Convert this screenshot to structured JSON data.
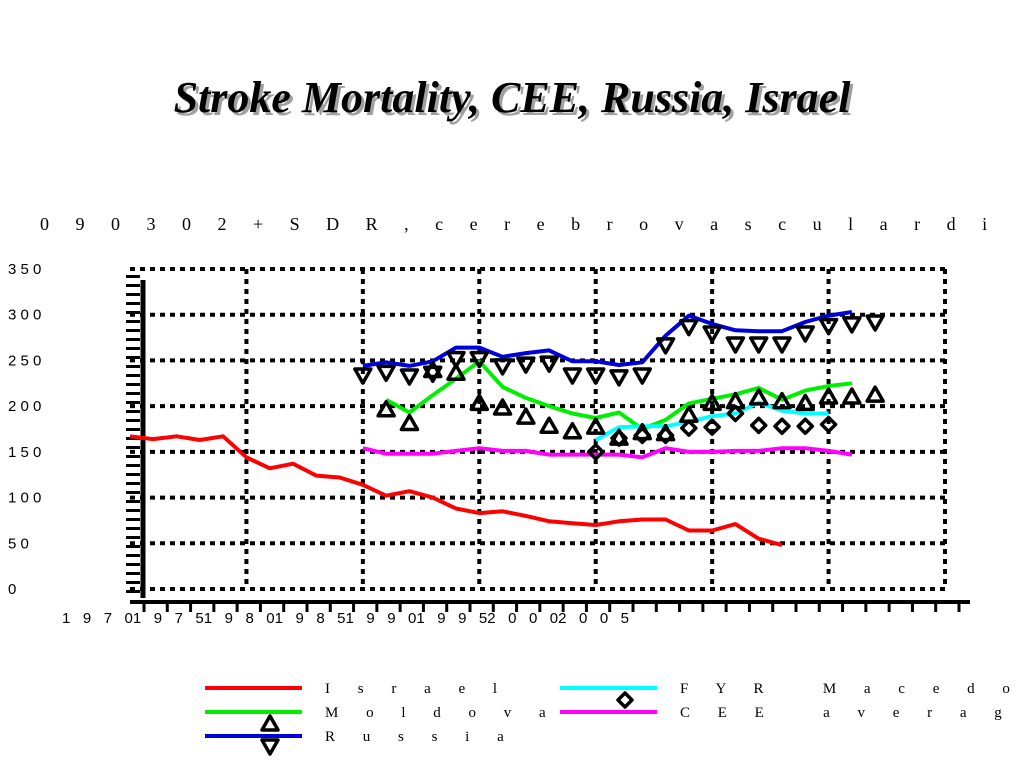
{
  "chart_data": {
    "type": "line",
    "title": "Stroke Mortality, CEE, Russia,  Israel",
    "subtitle": "0 9 0 3 0 2   + S D R ,  c e r e b r o v a s c u l a r   d i",
    "ylim": [
      0,
      350
    ],
    "xlim": [
      1970,
      2005
    ],
    "y_ticks": [
      {
        "value": 0,
        "label": "0"
      },
      {
        "value": 50,
        "label": "5 0"
      },
      {
        "value": 100,
        "label": "1 0 0"
      },
      {
        "value": 150,
        "label": "1 5 0"
      },
      {
        "value": 200,
        "label": "2 0 0"
      },
      {
        "value": 250,
        "label": "2 5 0"
      },
      {
        "value": 300,
        "label": "3 0 0"
      },
      {
        "value": 350,
        "label": "3 5 0"
      }
    ],
    "x_tick_text": "1   9   7   01   9   7   51   9   8   01   9   8   51   9   9   01   9   9   52   0   0   02   0   0   5",
    "grid": true,
    "legend_position": "bottom",
    "series": [
      {
        "name": "I s r a e l",
        "color": "#ff0000",
        "marker": "none",
        "x": [
          1970,
          1971,
          1972,
          1973,
          1974,
          1975,
          1976,
          1977,
          1978,
          1979,
          1980,
          1981,
          1982,
          1983,
          1984,
          1985,
          1986,
          1987,
          1988,
          1989,
          1990,
          1991,
          1992,
          1993,
          1994,
          1995,
          1996,
          1997,
          1998
        ],
        "y": [
          167,
          164,
          167,
          163,
          167,
          144,
          132,
          137,
          124,
          122,
          114,
          102,
          107,
          100,
          88,
          83,
          85,
          80,
          74,
          72,
          70,
          74,
          76,
          76,
          64,
          64,
          71,
          55,
          48
        ]
      },
      {
        "name": "M o l d o v a",
        "color": "#00ee00",
        "marker": "triangle-up",
        "x": [
          1981,
          1982,
          1983,
          1984,
          1985,
          1986,
          1987,
          1988,
          1989,
          1990,
          1991,
          1992,
          1993,
          1994,
          1995,
          1996,
          1997,
          1998,
          1999,
          2000,
          2001
        ],
        "y": [
          207,
          193,
          212,
          230,
          249,
          221,
          209,
          200,
          192,
          187,
          193,
          175,
          185,
          203,
          208,
          213,
          220,
          207,
          217,
          222,
          225
        ]
      },
      {
        "name": "R u s s i a",
        "color": "#0000dd",
        "marker": "triangle-down",
        "x": [
          1980,
          1981,
          1982,
          1983,
          1984,
          1985,
          1986,
          1987,
          1988,
          1989,
          1990,
          1991,
          1992,
          1993,
          1994,
          1995,
          1996,
          1997,
          1998,
          1999,
          2000,
          2001
        ],
        "y": [
          244,
          248,
          244,
          249,
          264,
          264,
          254,
          258,
          261,
          249,
          249,
          245,
          248,
          277,
          299,
          290,
          283,
          282,
          282,
          292,
          299,
          303
        ]
      },
      {
        "name": "F Y R   M a c e d o",
        "color": "#00ffff",
        "marker": "diamond",
        "x": [
          1990,
          1991,
          1992,
          1993,
          1994,
          1995,
          1996,
          1997,
          1998,
          1999,
          2000
        ],
        "y": [
          163,
          177,
          178,
          178,
          183,
          189,
          192,
          204,
          195,
          192,
          192
        ]
      },
      {
        "name": "C E E   a v e r a g e",
        "color": "#ff00ff",
        "marker": "none",
        "x": [
          1980,
          1981,
          1982,
          1983,
          1984,
          1985,
          1986,
          1987,
          1988,
          1989,
          1990,
          1991,
          1992,
          1993,
          1994,
          1995,
          1996,
          1997,
          1998,
          1999,
          2000,
          2001
        ],
        "y": [
          154,
          148,
          148,
          148,
          151,
          154,
          151,
          151,
          147,
          147,
          147,
          147,
          144,
          154,
          150,
          150,
          151,
          151,
          154,
          154,
          151,
          147
        ]
      }
    ],
    "marker_points": [
      {
        "series": "R u s s i a",
        "x": [
          1980,
          1981,
          1982,
          1983,
          1984,
          1985,
          1986,
          1987,
          1988,
          1989,
          1990,
          1991,
          1992,
          1993,
          1994,
          1995,
          1996,
          1997,
          1998,
          1999,
          2000,
          2001,
          2002
        ],
        "y": [
          234,
          237,
          233,
          236,
          252,
          252,
          244,
          246,
          247,
          234,
          234,
          232,
          234,
          267,
          287,
          280,
          268,
          268,
          268,
          280,
          288,
          290,
          292
        ]
      },
      {
        "series": "M o l d o v a",
        "x": [
          1981,
          1982,
          1983,
          1984,
          1985,
          1986,
          1987,
          1988,
          1989,
          1990,
          1991,
          1992,
          1993,
          1994,
          1995,
          1996,
          1997,
          1998,
          1999,
          2000,
          2001,
          2002
        ],
        "y": [
          196,
          181,
          239,
          236,
          203,
          198,
          188,
          178,
          172,
          177,
          165,
          171,
          170,
          190,
          203,
          205,
          209,
          205,
          203,
          210,
          210,
          212
        ]
      },
      {
        "series": "F Y R   M a c e d o",
        "x": [
          1990,
          1991,
          1992,
          1993,
          1994,
          1995,
          1996,
          1997,
          1998,
          1999,
          2000
        ],
        "y": [
          150,
          165,
          168,
          168,
          176,
          177,
          192,
          179,
          178,
          178,
          180
        ]
      }
    ]
  }
}
